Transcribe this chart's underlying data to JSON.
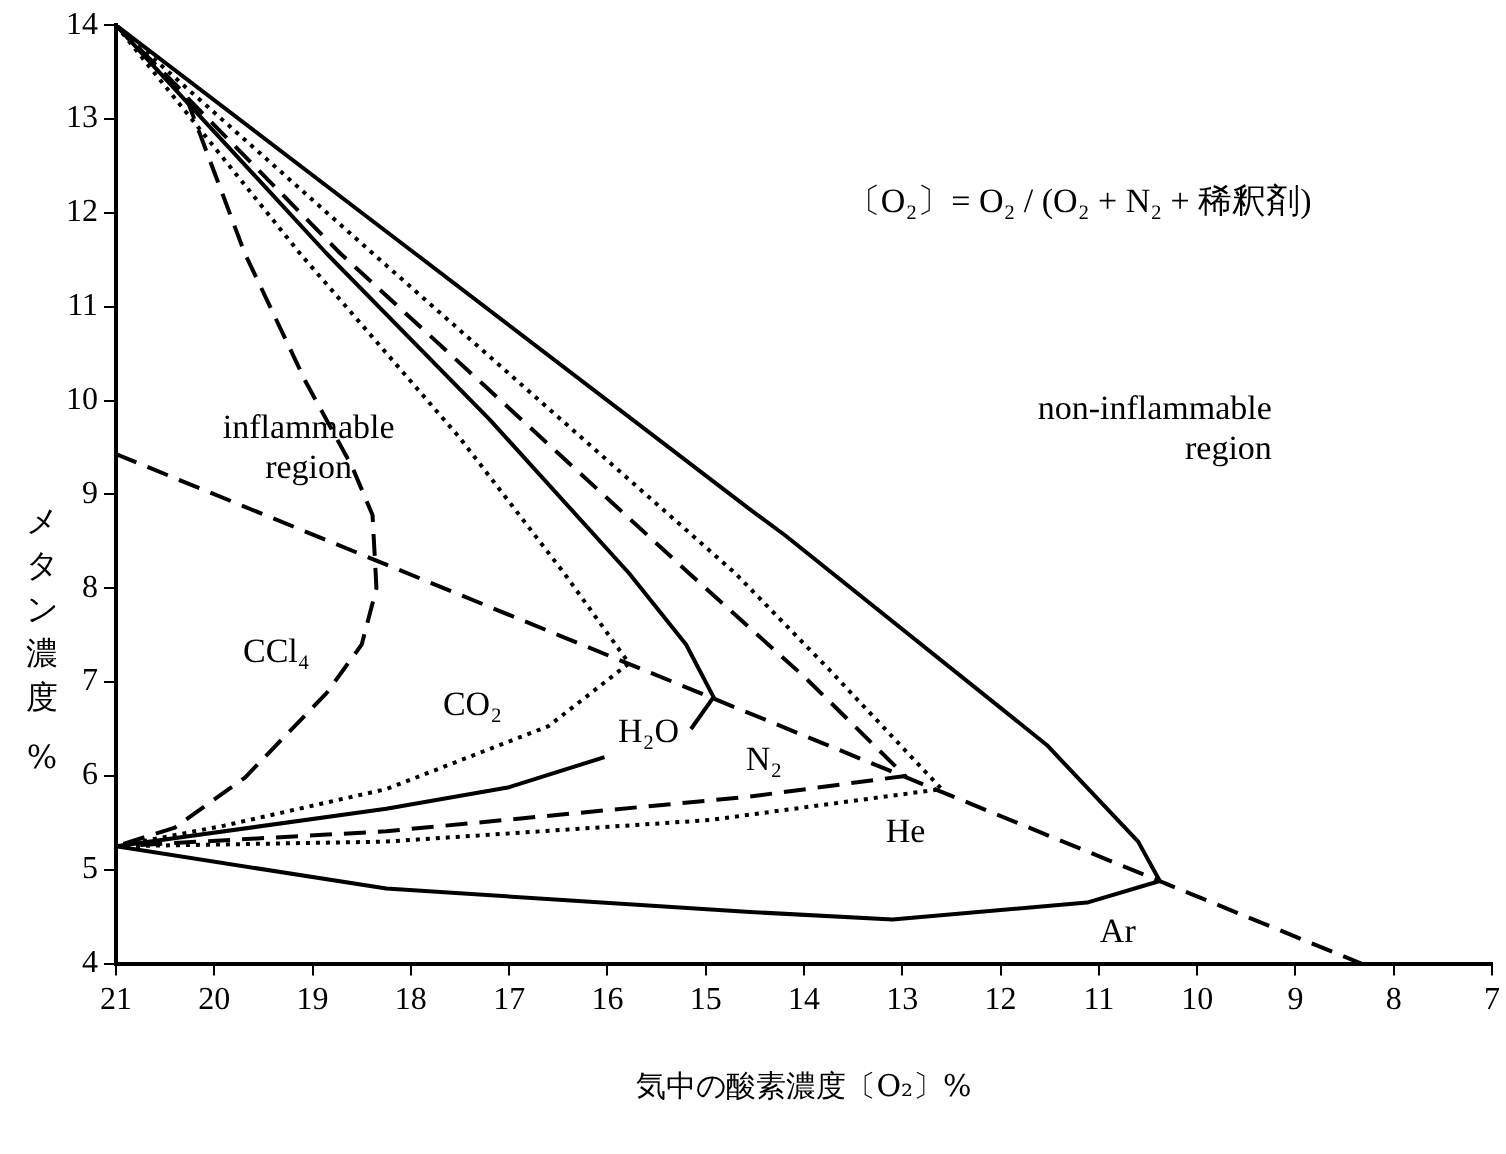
{
  "chart_data": {
    "type": "line",
    "xlabel": "気中の酸素濃度〔O₂〕%",
    "ylabel": "メタン濃度 %",
    "xlim": [
      21,
      7
    ],
    "xticks": [
      21,
      20,
      19,
      18,
      17,
      16,
      15,
      14,
      13,
      12,
      11,
      10,
      9,
      8,
      7
    ],
    "ylim": [
      4,
      14
    ],
    "yticks": [
      4,
      5,
      6,
      7,
      8,
      9,
      10,
      11,
      12,
      13,
      14
    ],
    "grid": false,
    "legend": false,
    "marker": "none",
    "annotations": [
      "〔O₂〕= O₂ / (O₂ + N₂ + 稀釈剤)",
      "inflammable region",
      "non-inflammable region"
    ],
    "series": [
      {
        "name": "CCl₄",
        "color": "#000000",
        "line_style": "dashed",
        "x": [
          21,
          20.3,
          19.69,
          19.07,
          18.6,
          18.39,
          18.35,
          18.5,
          18.86,
          19.69,
          20.4,
          21
        ],
        "values": [
          14,
          13.27,
          11.57,
          10.2,
          9.3,
          8.78,
          8.0,
          7.4,
          6.88,
          5.98,
          5.45,
          5.25
        ]
      },
      {
        "name": "CO₂",
        "color": "#000000",
        "line_style": "dotted",
        "x": [
          21,
          19.13,
          17.5,
          16.44,
          15.78,
          16.6,
          18.25,
          19.9,
          21
        ],
        "values": [
          14,
          11.57,
          9.6,
          8.16,
          7.2,
          6.53,
          5.86,
          5.47,
          5.25
        ]
      },
      {
        "name": "H₂O",
        "color": "#000000",
        "line_style": "solid",
        "x": [
          21,
          18.86,
          17.2,
          15.78,
          15.2,
          14.92,
          15.15,
          15.6,
          16.03,
          17,
          18.25,
          21
        ],
        "values": [
          14,
          11.57,
          9.8,
          8.16,
          7.4,
          6.84,
          6.5,
          null,
          6.2,
          5.88,
          5.65,
          5.25
        ]
      },
      {
        "name": "N₂",
        "color": "#000000",
        "line_style": "dashed",
        "x": [
          21,
          18.72,
          15.17,
          13.98,
          12.97,
          14.55,
          18.25,
          21
        ],
        "values": [
          14,
          11.57,
          8.16,
          7.04,
          6.0,
          5.78,
          5.41,
          5.25
        ]
      },
      {
        "name": "He",
        "color": "#000000",
        "line_style": "dotted",
        "x": [
          21,
          18.39,
          14.7,
          13.75,
          12.6,
          14.96,
          18.25,
          21
        ],
        "values": [
          14,
          11.57,
          8.16,
          7.14,
          5.86,
          5.53,
          5.3,
          5.25
        ]
      },
      {
        "name": "Ar",
        "color": "#000000",
        "line_style": "solid",
        "x": [
          21,
          17.96,
          14.55,
          14.2,
          11.53,
          10.6,
          10.38,
          11.12,
          13.1,
          14.55,
          18.25,
          21
        ],
        "values": [
          14,
          11.57,
          8.84,
          8.57,
          6.33,
          5.3,
          4.88,
          4.65,
          4.47,
          4.55,
          4.8,
          5.25
        ]
      },
      {
        "color": "#000000",
        "line_style": "dashed",
        "x": [
          21,
          8.33
        ],
        "values": [
          9.43,
          4
        ]
      }
    ]
  }
}
